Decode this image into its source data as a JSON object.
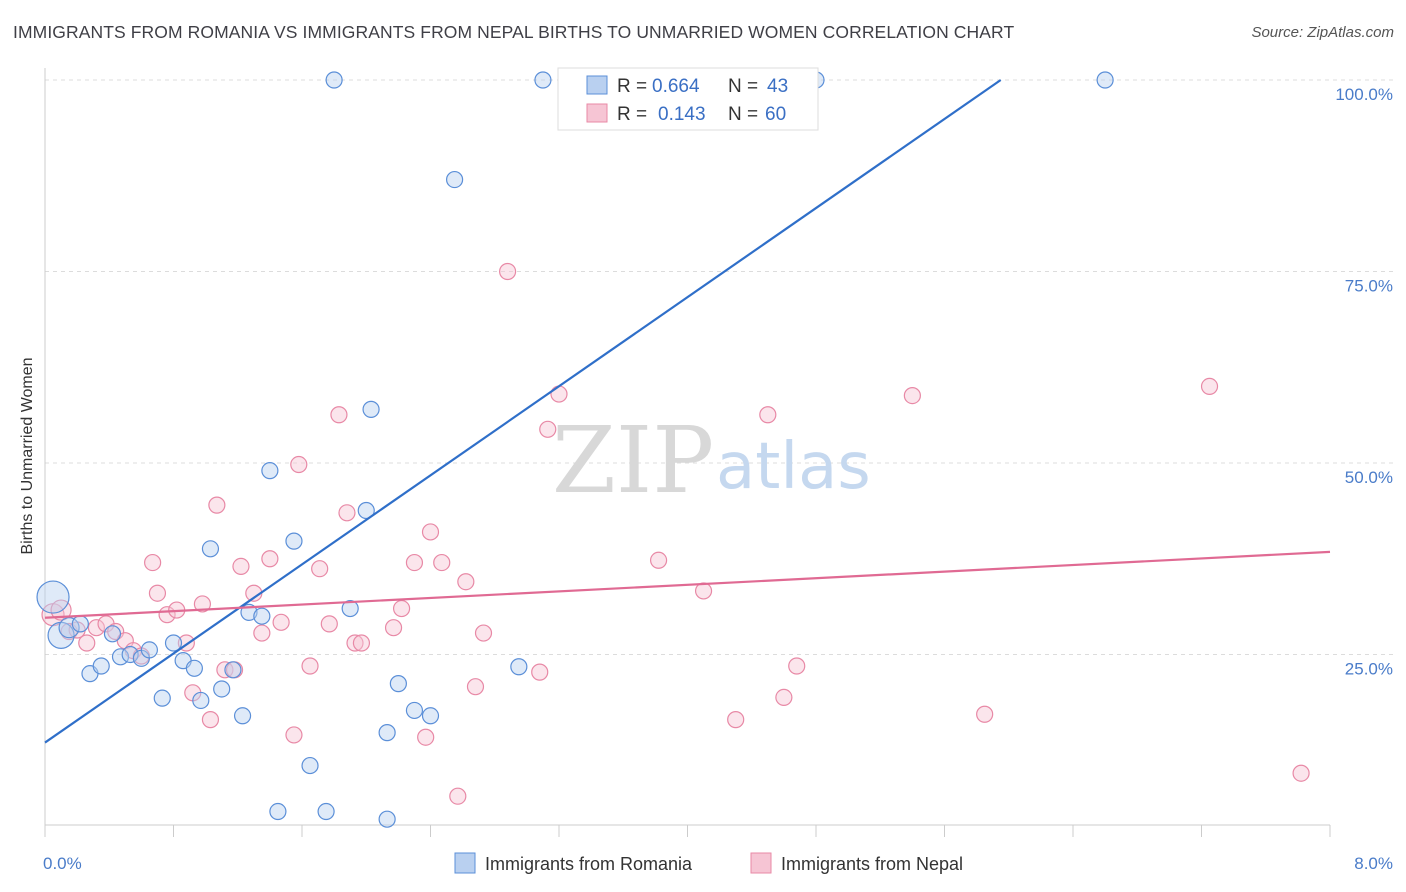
{
  "title": "IMMIGRANTS FROM ROMANIA VS IMMIGRANTS FROM NEPAL BIRTHS TO UNMARRIED WOMEN CORRELATION CHART",
  "source": "Source: ZipAtlas.com",
  "watermark": {
    "zip": "ZIP",
    "atlas": "atlas"
  },
  "legend": {
    "r_label": "R =",
    "n_label": "N =",
    "romania": {
      "r": "0.664",
      "n": "43"
    },
    "nepal": {
      "r": "0.143",
      "n": "60"
    }
  },
  "colors": {
    "romania": "#5b8fd8",
    "romania_fill": "#b9d0f0",
    "romania_line": "#2f6fc9",
    "nepal": "#e889a6",
    "nepal_fill": "#f6c5d4",
    "nepal_line": "#e06a93"
  },
  "chart_data": {
    "type": "scatter",
    "title": "IMMIGRANTS FROM ROMANIA VS IMMIGRANTS FROM NEPAL BIRTHS TO UNMARRIED WOMEN CORRELATION CHART",
    "xlabel": "",
    "ylabel": "Births to Unmarried Women",
    "xlim": [
      0,
      8
    ],
    "ylim": [
      0,
      105
    ],
    "x_tick_labels": [
      "0.0%",
      "8.0%"
    ],
    "y_ticks": [
      25,
      50,
      75,
      100
    ],
    "y_tick_labels": [
      "25.0%",
      "50.0%",
      "75.0%",
      "100.0%"
    ],
    "grid": true,
    "legend_position": "top-center",
    "series": [
      {
        "name": "Immigrants from Romania",
        "color": "#5b8fd8",
        "trend": {
          "x0": 0,
          "y0": 13.5,
          "x1": 5.95,
          "y1": 100
        },
        "points": [
          [
            0.05,
            32.5,
            16
          ],
          [
            0.1,
            27.5,
            13
          ],
          [
            0.15,
            28.5,
            10
          ],
          [
            0.22,
            29.0,
            8
          ],
          [
            0.28,
            22.5,
            8
          ],
          [
            0.35,
            23.5,
            8
          ],
          [
            0.42,
            27.7,
            8
          ],
          [
            0.47,
            24.7,
            8
          ],
          [
            0.53,
            25.0,
            8
          ],
          [
            0.6,
            24.5,
            8
          ],
          [
            0.65,
            25.6,
            8
          ],
          [
            0.73,
            19.3,
            8
          ],
          [
            0.8,
            26.5,
            8
          ],
          [
            0.86,
            24.2,
            8
          ],
          [
            0.93,
            23.2,
            8
          ],
          [
            0.97,
            19.0,
            8
          ],
          [
            1.03,
            38.8,
            8
          ],
          [
            1.1,
            20.5,
            8
          ],
          [
            1.17,
            23.0,
            8
          ],
          [
            1.23,
            17.0,
            8
          ],
          [
            1.27,
            30.5,
            8
          ],
          [
            1.35,
            30.0,
            8
          ],
          [
            1.4,
            49.0,
            8
          ],
          [
            1.45,
            4.5,
            8
          ],
          [
            1.55,
            39.8,
            8
          ],
          [
            1.65,
            10.5,
            8
          ],
          [
            1.75,
            4.5,
            8
          ],
          [
            1.8,
            100.0,
            8
          ],
          [
            1.9,
            31.0,
            8
          ],
          [
            2.0,
            43.8,
            8
          ],
          [
            2.03,
            57.0,
            8
          ],
          [
            2.13,
            3.5,
            8
          ],
          [
            2.2,
            21.2,
            8
          ],
          [
            2.13,
            14.8,
            8
          ],
          [
            2.3,
            17.7,
            8
          ],
          [
            2.4,
            17.0,
            8
          ],
          [
            2.55,
            87.0,
            8
          ],
          [
            2.95,
            23.4,
            8
          ],
          [
            3.1,
            100.0,
            8
          ],
          [
            3.25,
            100.0,
            8
          ],
          [
            4.45,
            100.0,
            8
          ],
          [
            4.8,
            100.0,
            8
          ],
          [
            6.6,
            100.0,
            8
          ]
        ]
      },
      {
        "name": "Immigrants from Nepal",
        "color": "#e889a6",
        "trend": {
          "x0": 0,
          "y0": 29.8,
          "x1": 8.0,
          "y1": 38.4
        },
        "points": [
          [
            0.05,
            30.2,
            11
          ],
          [
            0.1,
            30.8,
            10
          ],
          [
            0.15,
            28.0,
            8
          ],
          [
            0.2,
            28.2,
            8
          ],
          [
            0.26,
            26.5,
            8
          ],
          [
            0.32,
            28.5,
            8
          ],
          [
            0.38,
            29.0,
            8
          ],
          [
            0.44,
            28.0,
            8
          ],
          [
            0.5,
            26.8,
            8
          ],
          [
            0.55,
            25.5,
            8
          ],
          [
            0.6,
            24.8,
            8
          ],
          [
            0.67,
            37.0,
            8
          ],
          [
            0.7,
            33.0,
            8
          ],
          [
            0.76,
            30.2,
            8
          ],
          [
            0.82,
            30.8,
            8
          ],
          [
            0.88,
            26.5,
            8
          ],
          [
            0.92,
            20.0,
            8
          ],
          [
            0.98,
            31.6,
            8
          ],
          [
            1.03,
            16.5,
            8
          ],
          [
            1.07,
            44.5,
            8
          ],
          [
            1.12,
            23.0,
            8
          ],
          [
            1.18,
            23.0,
            8
          ],
          [
            1.22,
            36.5,
            8
          ],
          [
            1.3,
            33.0,
            8
          ],
          [
            1.35,
            27.8,
            8
          ],
          [
            1.4,
            37.5,
            8
          ],
          [
            1.47,
            29.2,
            8
          ],
          [
            1.55,
            14.5,
            8
          ],
          [
            1.58,
            49.8,
            8
          ],
          [
            1.65,
            23.5,
            8
          ],
          [
            1.71,
            36.2,
            8
          ],
          [
            1.77,
            29.0,
            8
          ],
          [
            1.83,
            56.3,
            8
          ],
          [
            1.88,
            43.5,
            8
          ],
          [
            1.93,
            26.5,
            8
          ],
          [
            1.97,
            26.5,
            8
          ],
          [
            2.17,
            28.5,
            8
          ],
          [
            2.22,
            31.0,
            8
          ],
          [
            2.3,
            37.0,
            8
          ],
          [
            2.37,
            14.2,
            8
          ],
          [
            2.4,
            41.0,
            8
          ],
          [
            2.47,
            37.0,
            8
          ],
          [
            2.57,
            6.5,
            8
          ],
          [
            2.62,
            34.5,
            8
          ],
          [
            2.68,
            20.8,
            8
          ],
          [
            2.73,
            27.8,
            8
          ],
          [
            2.88,
            75.0,
            8
          ],
          [
            3.08,
            22.7,
            8
          ],
          [
            3.13,
            54.4,
            8
          ],
          [
            3.2,
            59.0,
            8
          ],
          [
            3.82,
            37.3,
            8
          ],
          [
            4.1,
            33.3,
            8
          ],
          [
            4.3,
            16.5,
            8
          ],
          [
            4.5,
            56.3,
            8
          ],
          [
            4.6,
            19.4,
            8
          ],
          [
            4.68,
            23.5,
            8
          ],
          [
            5.4,
            58.8,
            8
          ],
          [
            5.85,
            17.2,
            8
          ],
          [
            7.25,
            60.0,
            8
          ],
          [
            7.82,
            9.5,
            8
          ]
        ]
      }
    ]
  }
}
